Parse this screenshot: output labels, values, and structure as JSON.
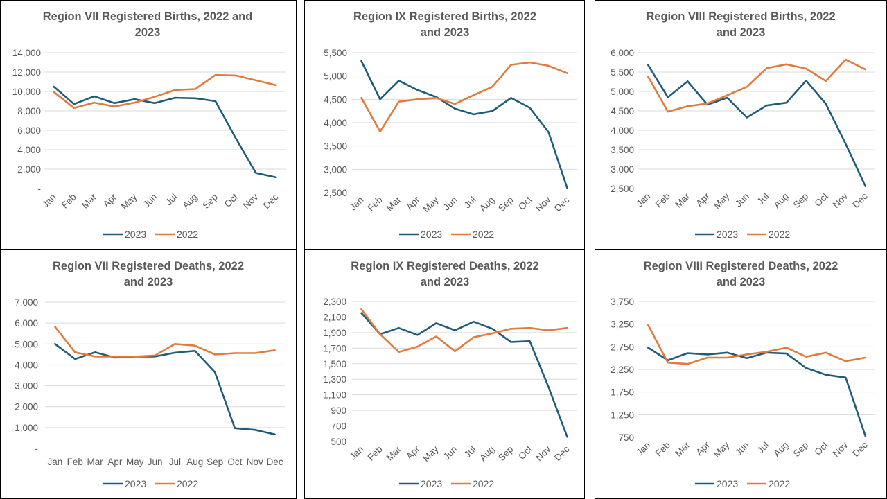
{
  "colors": {
    "series_2023": "#1f5c7a",
    "series_2022": "#e07b3b",
    "grid": "#d9d9d9",
    "text": "#595959"
  },
  "chart_data": [
    {
      "type": "line",
      "title_lines": [
        "Region VII  Registered Births, 2022 and",
        "2023"
      ],
      "categories": [
        "Jan",
        "Feb",
        "Mar",
        "Apr",
        "May",
        "Jun",
        "Jul",
        "Aug",
        "Sep",
        "Oct",
        "Nov",
        "Dec"
      ],
      "y_ticks": [
        "-",
        "2,000",
        "4,000",
        "6,000",
        "8,000",
        "10,000",
        "12,000",
        "14,000"
      ],
      "ylim": [
        0,
        14000
      ],
      "grid": true,
      "legend": "bottom",
      "series": [
        {
          "name": "2023",
          "values": [
            10500,
            8700,
            9500,
            8800,
            9200,
            8800,
            9350,
            9300,
            9000,
            5200,
            1600,
            1150
          ]
        },
        {
          "name": "2022",
          "values": [
            9950,
            8300,
            8850,
            8450,
            8850,
            9450,
            10150,
            10250,
            11700,
            11650,
            11150,
            10650
          ]
        }
      ]
    },
    {
      "type": "line",
      "title_lines": [
        "Region IX  Registered Births, 2022",
        "and 2023"
      ],
      "categories": [
        "Jan",
        "Feb",
        "Mar",
        "Apr",
        "May",
        "Jun",
        "Jul",
        "Aug",
        "Sep",
        "Oct",
        "Nov",
        "Dec"
      ],
      "y_ticks": [
        "2,500",
        "3,000",
        "3,500",
        "4,000",
        "4,500",
        "5,000",
        "5,500"
      ],
      "ylim": [
        2500,
        5500
      ],
      "grid": true,
      "legend": "bottom",
      "series": [
        {
          "name": "2023",
          "values": [
            5320,
            4500,
            4900,
            4700,
            4550,
            4300,
            4180,
            4250,
            4530,
            4320,
            3800,
            2600
          ]
        },
        {
          "name": "2022",
          "values": [
            4530,
            3810,
            4450,
            4500,
            4530,
            4400,
            4590,
            4770,
            5240,
            5290,
            5220,
            5060
          ]
        }
      ]
    },
    {
      "type": "line",
      "title_lines": [
        "Region VIII  Registered Births, 2022",
        "and 2023"
      ],
      "categories": [
        "Jan",
        "Feb",
        "Mar",
        "Apr",
        "May",
        "Jun",
        "Jul",
        "Aug",
        "Sep",
        "Oct",
        "Nov",
        "Dec"
      ],
      "y_ticks": [
        "2,500",
        "3,000",
        "3,500",
        "4,000",
        "4,500",
        "5,000",
        "5,500",
        "6,000"
      ],
      "ylim": [
        2500,
        6000
      ],
      "grid": true,
      "legend": "bottom",
      "series": [
        {
          "name": "2023",
          "values": [
            5680,
            4850,
            5260,
            4660,
            4840,
            4330,
            4640,
            4710,
            5280,
            4680,
            3650,
            2560
          ]
        },
        {
          "name": "2022",
          "values": [
            5380,
            4480,
            4620,
            4690,
            4900,
            5120,
            5600,
            5700,
            5590,
            5270,
            5820,
            5570
          ]
        }
      ]
    },
    {
      "type": "line",
      "title_lines": [
        "Region VII  Registered Deaths, 2022",
        "and 2023"
      ],
      "categories": [
        "Jan",
        "Feb",
        "Mar",
        "Apr",
        "May",
        "Jun",
        "Jul",
        "Aug",
        "Sep",
        "Oct",
        "Nov",
        "Dec"
      ],
      "tick_label_orientation": "horizontal",
      "y_ticks": [
        "-",
        "1,000",
        "2,000",
        "3,000",
        "4,000",
        "5,000",
        "6,000",
        "7,000"
      ],
      "ylim": [
        0,
        7000
      ],
      "grid": true,
      "legend": "bottom",
      "series": [
        {
          "name": "2023",
          "values": [
            5000,
            4280,
            4600,
            4350,
            4400,
            4400,
            4580,
            4670,
            3650,
            970,
            890,
            670
          ]
        },
        {
          "name": "2022",
          "values": [
            5820,
            4600,
            4400,
            4400,
            4400,
            4450,
            5000,
            4920,
            4500,
            4560,
            4560,
            4700
          ]
        }
      ]
    },
    {
      "type": "line",
      "title_lines": [
        "Region IX  Registered Deaths, 2022",
        "and 2023"
      ],
      "categories": [
        "Jan",
        "Feb",
        "Mar",
        "Apr",
        "May",
        "Jun",
        "Jul",
        "Aug",
        "Sep",
        "Oct",
        "Nov",
        "Dec"
      ],
      "y_ticks": [
        "500",
        "700",
        "900",
        "1,100",
        "1,300",
        "1,500",
        "1,700",
        "1,900",
        "2,100",
        "2,300"
      ],
      "ylim": [
        500,
        2300
      ],
      "grid": true,
      "legend": "bottom",
      "series": [
        {
          "name": "2023",
          "values": [
            2150,
            1880,
            1960,
            1870,
            2020,
            1930,
            2040,
            1950,
            1780,
            1790,
            1200,
            560
          ]
        },
        {
          "name": "2022",
          "values": [
            2200,
            1880,
            1650,
            1720,
            1850,
            1660,
            1840,
            1890,
            1950,
            1960,
            1930,
            1960
          ]
        }
      ]
    },
    {
      "type": "line",
      "title_lines": [
        "Region VIII  Registered Deaths, 2022",
        "and 2023"
      ],
      "categories": [
        "Jan",
        "Feb",
        "Mar",
        "Apr",
        "May",
        "Jun",
        "Jul",
        "Aug",
        "Sep",
        "Oct",
        "Nov",
        "Dec"
      ],
      "y_ticks": [
        "750",
        "1,250",
        "1,750",
        "2,250",
        "2,750",
        "3,250",
        "3,750"
      ],
      "ylim": [
        750,
        3750
      ],
      "grid": true,
      "legend": "bottom",
      "series": [
        {
          "name": "2023",
          "values": [
            2730,
            2450,
            2610,
            2580,
            2620,
            2500,
            2620,
            2600,
            2280,
            2130,
            2070,
            780
          ]
        },
        {
          "name": "2022",
          "values": [
            3230,
            2400,
            2370,
            2510,
            2510,
            2580,
            2640,
            2730,
            2530,
            2620,
            2430,
            2510
          ]
        }
      ]
    }
  ]
}
